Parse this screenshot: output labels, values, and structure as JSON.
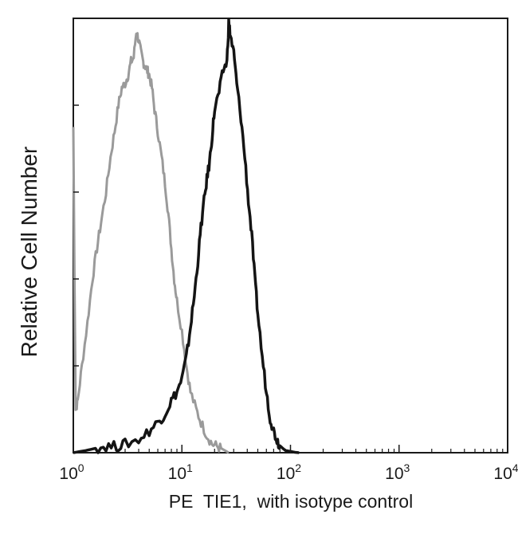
{
  "chart_data": {
    "type": "line",
    "title": "",
    "xlabel": "PE  TIE1,  with isotype control",
    "ylabel": "Relative Cell Number",
    "xscale": "log",
    "xlim": [
      1,
      10000
    ],
    "ylim": [
      0,
      100
    ],
    "x_ticks": [
      {
        "value": 1,
        "base": "10",
        "exp": "0"
      },
      {
        "value": 10,
        "base": "10",
        "exp": "1"
      },
      {
        "value": 100,
        "base": "10",
        "exp": "2"
      },
      {
        "value": 1000,
        "base": "10",
        "exp": "3"
      },
      {
        "value": 10000,
        "base": "10",
        "exp": "4"
      }
    ],
    "y_ticks": [
      0,
      20,
      40,
      60,
      80,
      100
    ],
    "legend": "none",
    "series": [
      {
        "name": "isotype control",
        "color": "#9a9a9a",
        "x": [
          1.0,
          1.05,
          1.1,
          1.2,
          1.35,
          1.5,
          1.65,
          1.8,
          2.0,
          2.2,
          2.4,
          2.6,
          2.8,
          3.0,
          3.2,
          3.4,
          3.6,
          3.8,
          4.0,
          4.2,
          4.4,
          4.6,
          4.8,
          5.0,
          5.3,
          5.6,
          6.0,
          6.5,
          7.0,
          7.5,
          8.0,
          8.5,
          9.0,
          10.0,
          11.0,
          12.0,
          13.5,
          15.0,
          17.0,
          19.0,
          21.0,
          23.0,
          25.0,
          27.0
        ],
        "values": [
          75,
          10,
          12,
          20,
          30,
          40,
          47,
          53,
          60,
          68,
          74,
          80,
          84,
          85,
          87,
          90,
          91,
          97,
          95,
          92,
          90,
          89,
          88,
          87,
          84,
          79,
          74,
          68,
          62,
          55,
          47,
          40,
          35,
          28,
          20,
          14,
          10,
          7,
          4,
          2,
          1.5,
          1,
          0.5,
          0
        ]
      },
      {
        "name": "PE TIE1",
        "color": "#141414",
        "x": [
          1.0,
          1.3,
          1.6,
          2.0,
          2.5,
          3.0,
          4.0,
          5.0,
          6.0,
          7.0,
          8.0,
          9.0,
          10.0,
          11.0,
          12.0,
          13.0,
          14.0,
          15.0,
          16.0,
          17.0,
          18.0,
          19.0,
          20.0,
          22.0,
          24.0,
          26.0,
          27.0,
          28.0,
          30.0,
          32.0,
          35.0,
          38.0,
          41.0,
          44.0,
          47.0,
          50.0,
          55.0,
          60.0,
          65.0,
          70.0,
          75.0,
          80.0,
          90.0,
          100.0,
          110.0,
          120.0
        ],
        "values": [
          0,
          0.5,
          1,
          1.5,
          1.5,
          2,
          3,
          5,
          7,
          9,
          12,
          14,
          17,
          22,
          29,
          36,
          44,
          52,
          58,
          63,
          67,
          73,
          79,
          83,
          88,
          90,
          99,
          96,
          92,
          85,
          77,
          68,
          58,
          50,
          40,
          32,
          22,
          14,
          8,
          5,
          3,
          1.5,
          0.5,
          0.3,
          0.1,
          0
        ]
      }
    ]
  }
}
